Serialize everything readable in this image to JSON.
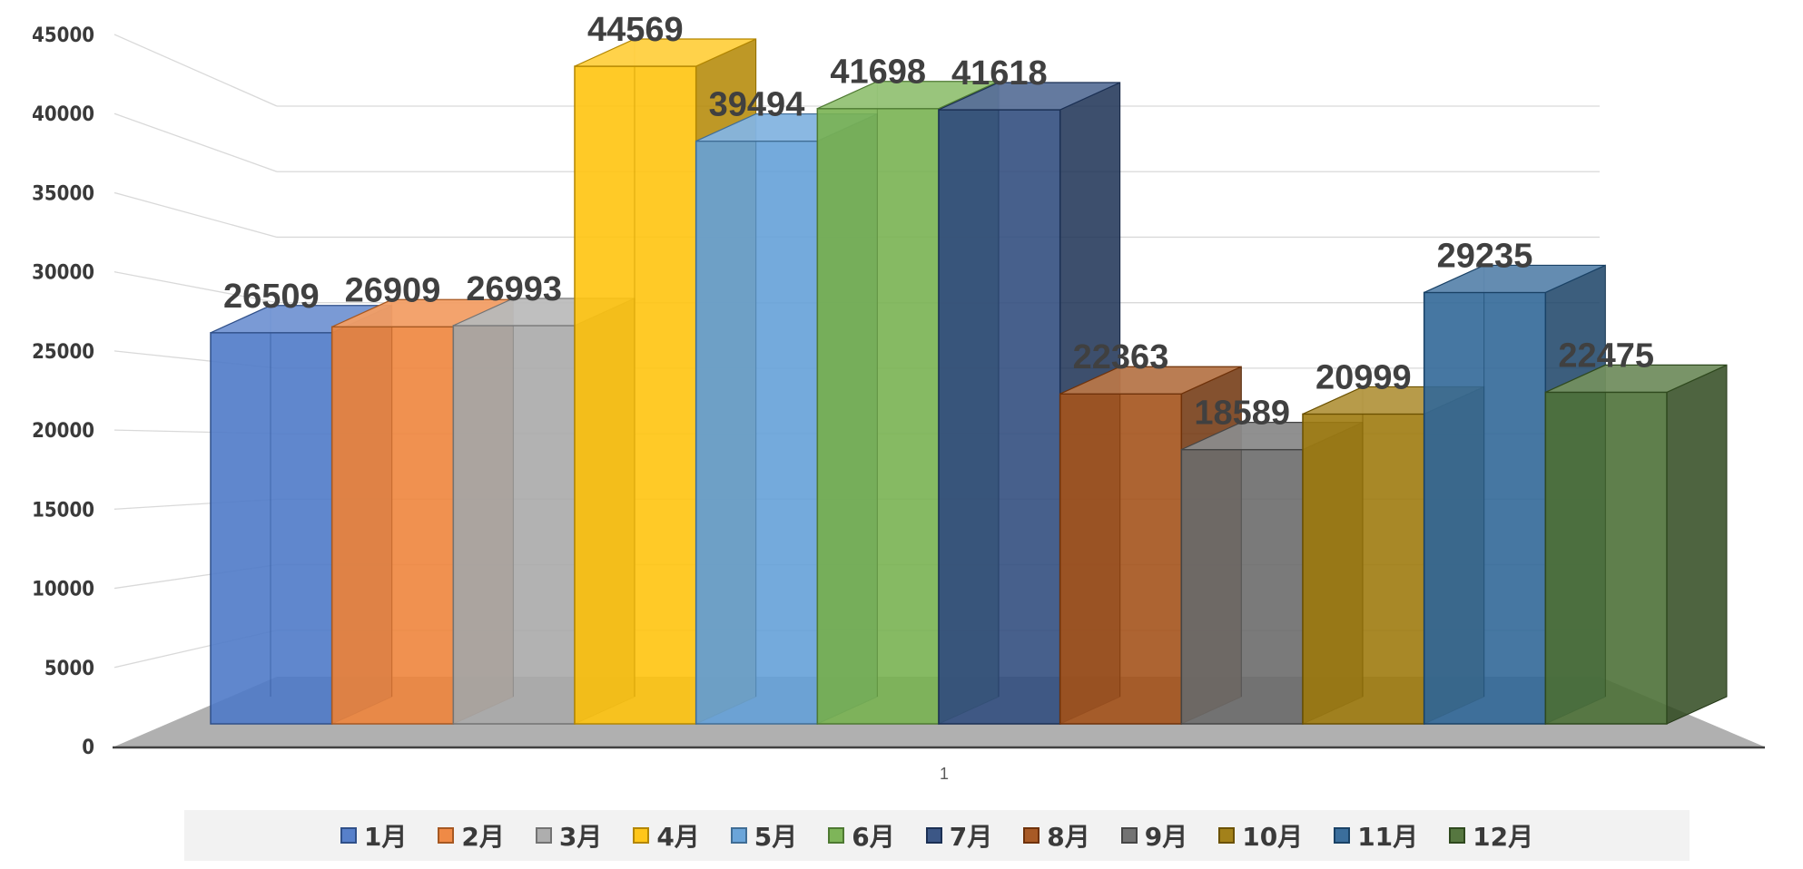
{
  "chart_data": {
    "type": "bar",
    "title": "",
    "xlabel": "",
    "ylabel": "",
    "ylim": [
      0,
      45000
    ],
    "yticks": [
      0,
      5000,
      10000,
      15000,
      20000,
      25000,
      30000,
      35000,
      40000,
      45000
    ],
    "grid": true,
    "legend_position": "bottom",
    "x_category": "1",
    "series": [
      {
        "name": "1月",
        "value": 26509,
        "color": "#4472c4"
      },
      {
        "name": "2月",
        "value": 26909,
        "color": "#ed7d31"
      },
      {
        "name": "3月",
        "value": 26993,
        "color": "#a5a5a5"
      },
      {
        "name": "4月",
        "value": 44569,
        "color": "#ffc000"
      },
      {
        "name": "5月",
        "value": 39494,
        "color": "#5b9bd5"
      },
      {
        "name": "6月",
        "value": 41698,
        "color": "#70ad47"
      },
      {
        "name": "7月",
        "value": 41618,
        "color": "#264478"
      },
      {
        "name": "8月",
        "value": 22363,
        "color": "#9e480e"
      },
      {
        "name": "9月",
        "value": 18589,
        "color": "#636363"
      },
      {
        "name": "10月",
        "value": 20999,
        "color": "#997300"
      },
      {
        "name": "11月",
        "value": 29235,
        "color": "#255e91"
      },
      {
        "name": "12月",
        "value": 22475,
        "color": "#43682b"
      }
    ]
  }
}
